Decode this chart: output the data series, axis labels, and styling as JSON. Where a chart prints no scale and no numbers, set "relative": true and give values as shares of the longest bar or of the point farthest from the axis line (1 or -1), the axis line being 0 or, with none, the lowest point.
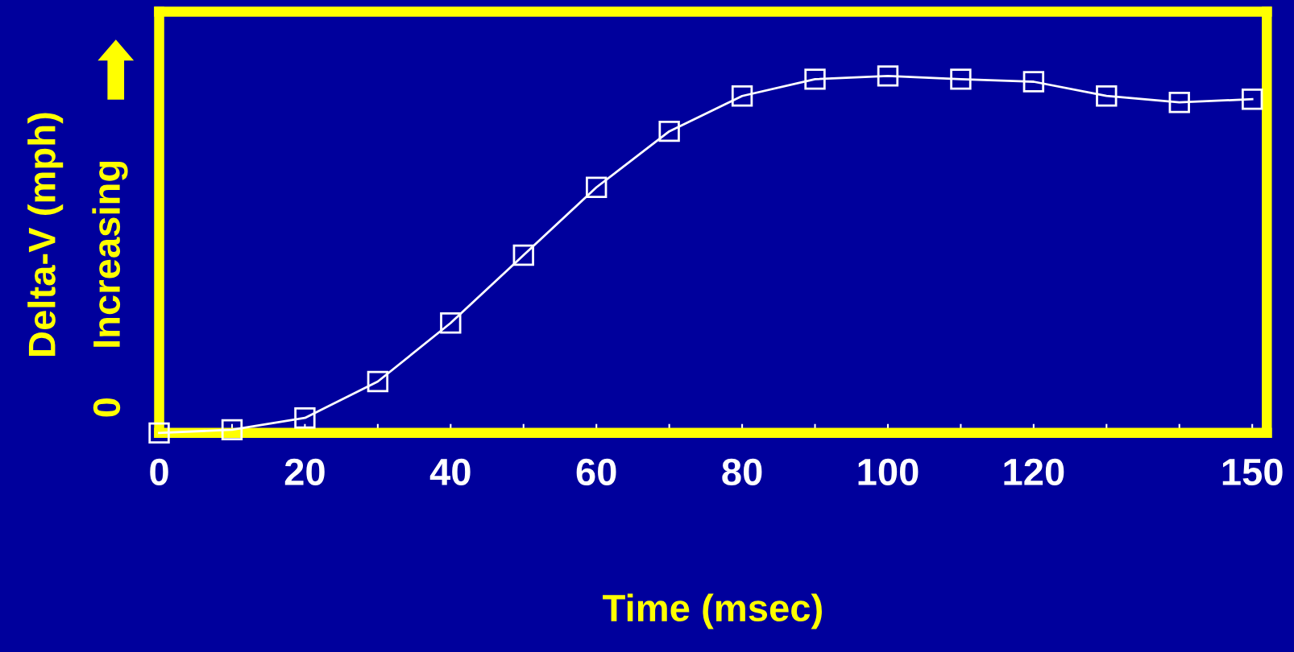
{
  "chart_data": {
    "type": "line",
    "relative": true,
    "xlabel": "Time (msec)",
    "ylabel": "Delta-V (mph)",
    "annotations": [
      "0",
      "Increasing"
    ],
    "x": [
      0,
      10,
      20,
      30,
      40,
      50,
      60,
      70,
      80,
      90,
      100,
      110,
      120,
      130,
      140,
      150
    ],
    "series": [
      {
        "color": "#ffffff",
        "values": [
          0,
          0.009,
          0.042,
          0.144,
          0.308,
          0.498,
          0.688,
          0.845,
          0.944,
          0.991,
          1,
          0.991,
          0.984,
          0.944,
          0.926,
          0.935
        ]
      }
    ],
    "xlim": [
      0,
      152
    ],
    "xticks": [
      0,
      {
        "value": 10,
        "label": null
      },
      20,
      {
        "value": 30,
        "label": null
      },
      40,
      {
        "value": 50,
        "label": null
      },
      60,
      {
        "value": 70,
        "label": null
      },
      80,
      {
        "value": 90,
        "label": null
      },
      100,
      {
        "value": 110,
        "label": null
      },
      120,
      {
        "value": 130,
        "label": null
      },
      {
        "value": 140,
        "label": null
      },
      150
    ],
    "marker": "square",
    "line_style": "solid",
    "grid": false,
    "legend": false
  }
}
